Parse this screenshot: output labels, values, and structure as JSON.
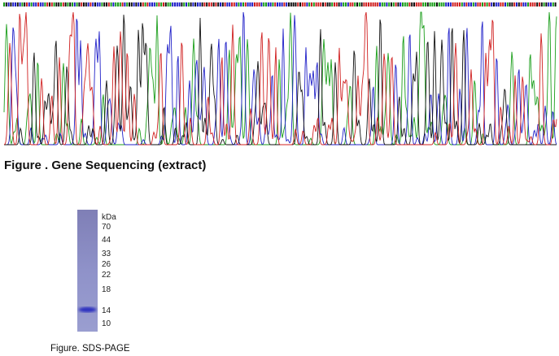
{
  "figures": [
    {
      "caption": "Figure . Gene Sequencing (extract)"
    },
    {
      "caption": "Figure. SDS-PAGE",
      "unit": "kDa",
      "markers": [
        70,
        44,
        33,
        26,
        22,
        18,
        14,
        10
      ]
    }
  ]
}
